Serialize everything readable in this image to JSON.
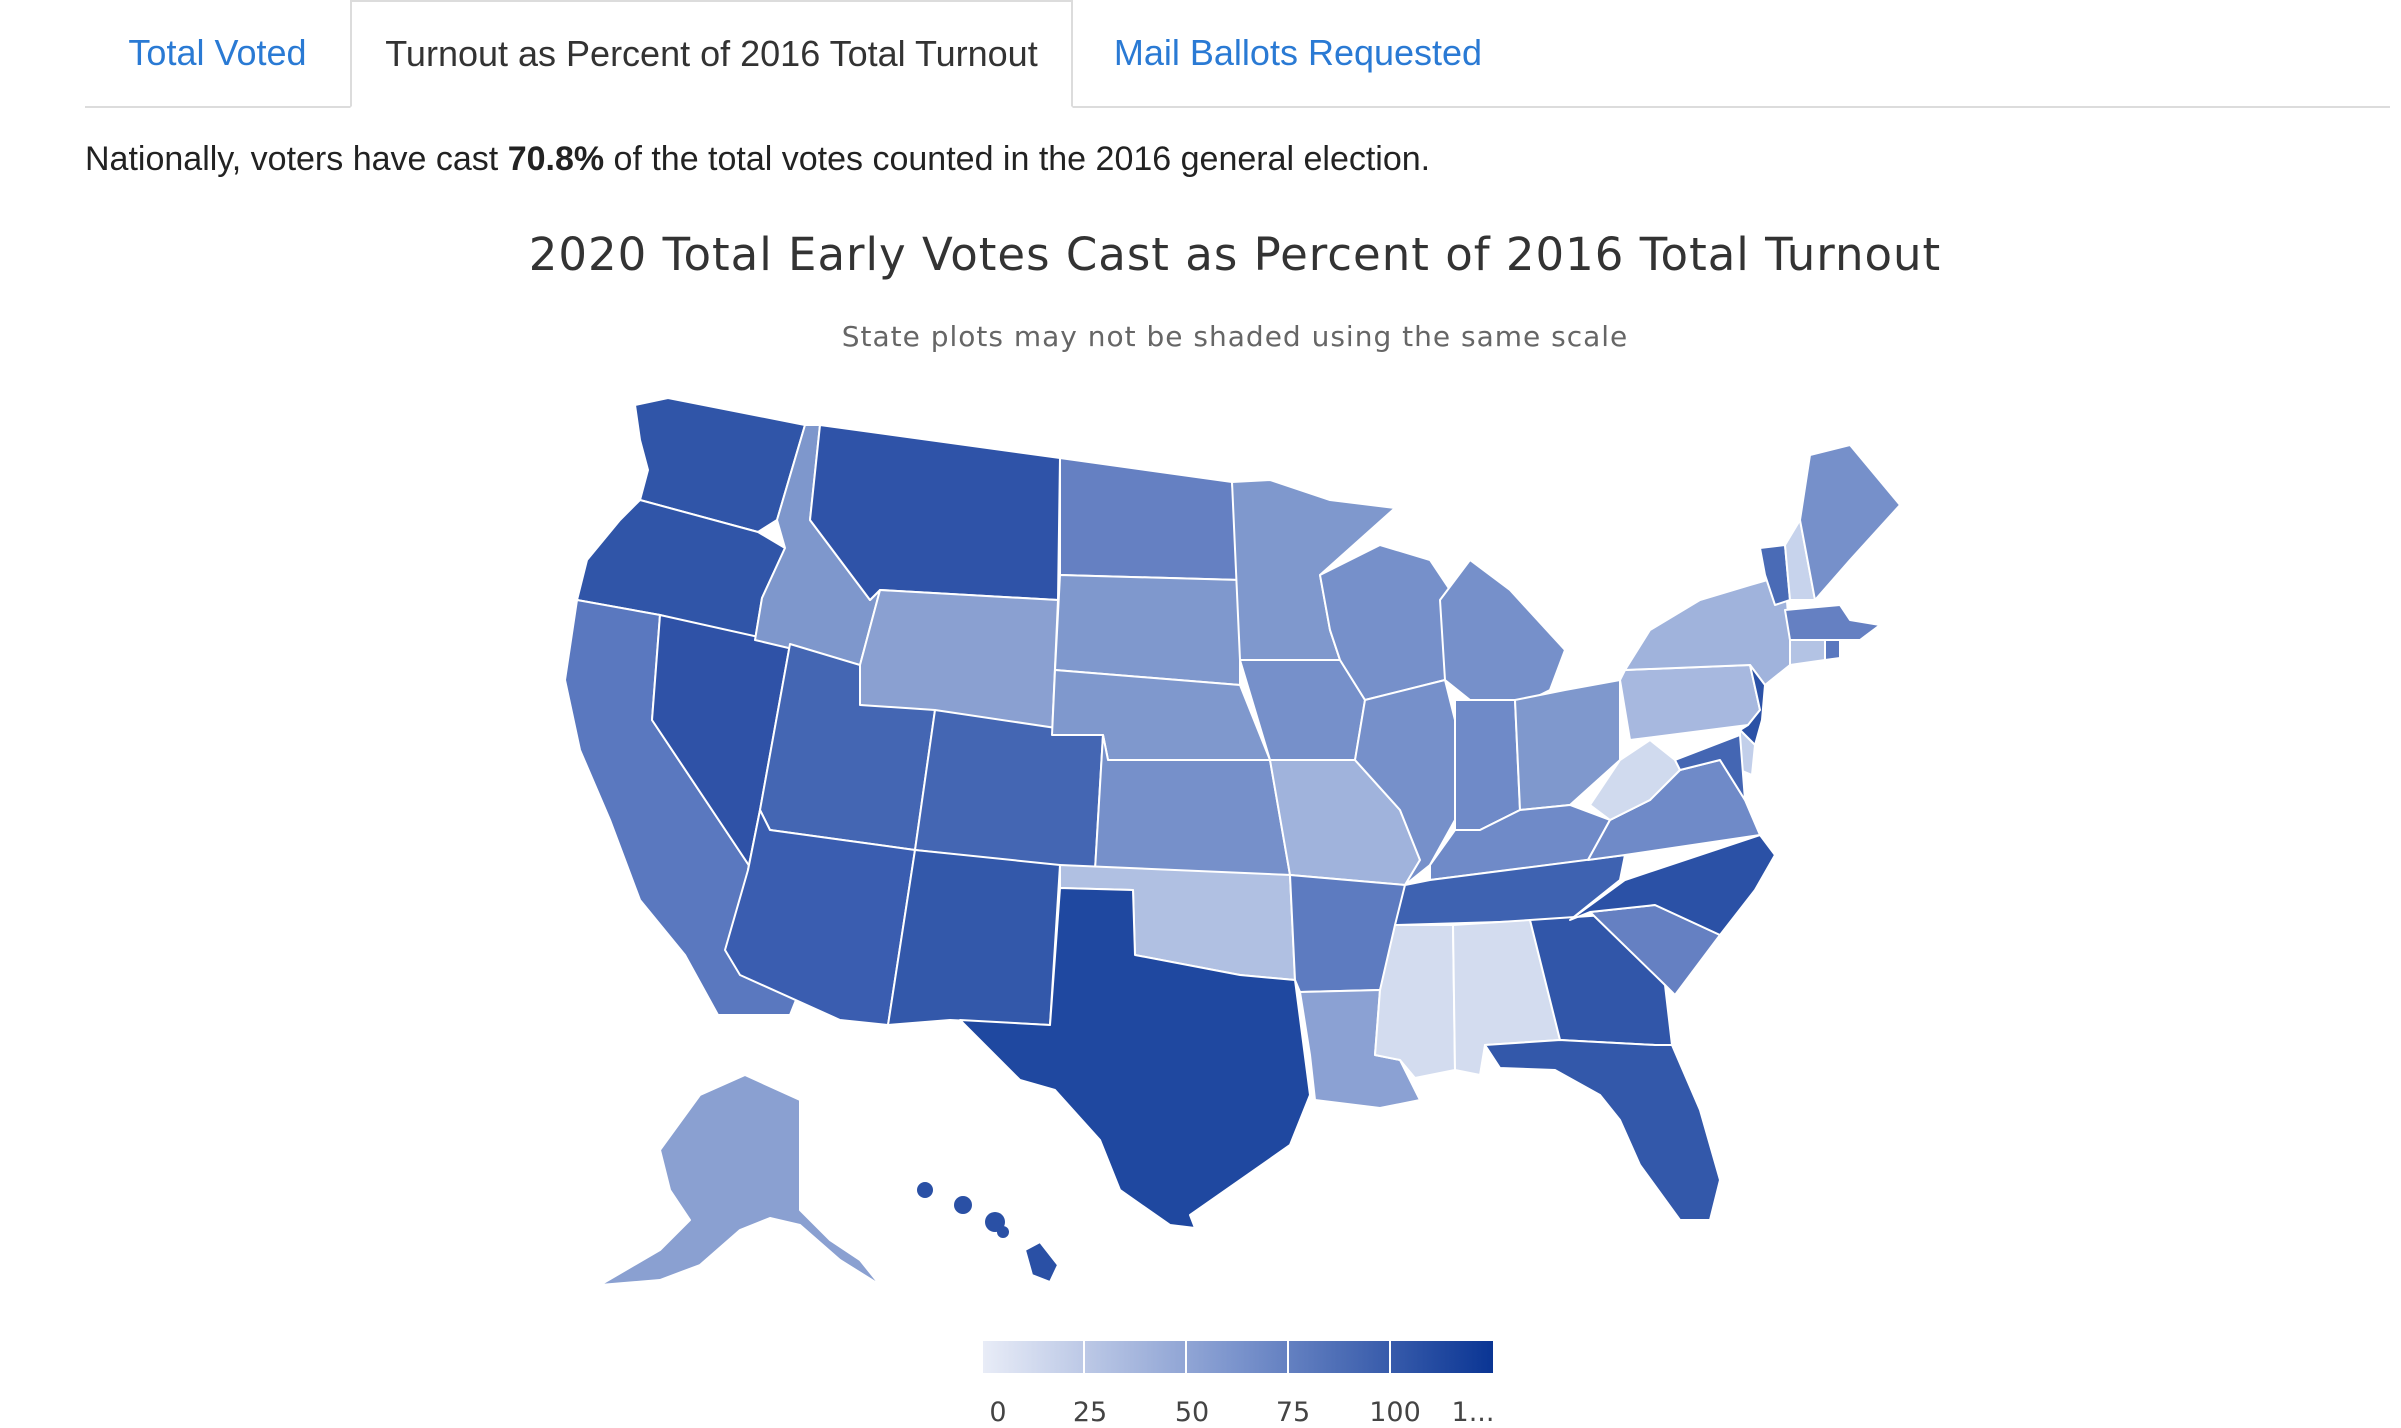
{
  "tabs": [
    {
      "label": "Total Voted",
      "active": false
    },
    {
      "label": "Turnout as Percent of 2016 Total Turnout",
      "active": true
    },
    {
      "label": "Mail Ballots Requested",
      "active": false
    }
  ],
  "summary": {
    "prefix": "Nationally, voters have cast",
    "value": "70.8%",
    "suffix": "of the total votes counted in the 2016 general election."
  },
  "map": {
    "title": "2020 Total Early Votes Cast as Percent of 2016 Total Turnout",
    "subtitle": "State plots may not be shaded using the same scale",
    "colors": {
      "low": "#e8ecf7",
      "mid": "#7a93cc",
      "high": "#0a3594",
      "border": "#ffffff"
    },
    "legend": {
      "ticks": [
        "0",
        "25",
        "50",
        "75",
        "100",
        "1..."
      ]
    },
    "states": {
      "WA": {
        "level": "very-high",
        "color": "#3055a8"
      },
      "OR": {
        "level": "very-high",
        "color": "#3055a8"
      },
      "CA": {
        "level": "high",
        "color": "#5a78bf"
      },
      "NV": {
        "level": "very-high",
        "color": "#2f52a7"
      },
      "ID": {
        "level": "medium",
        "color": "#7e97cc"
      },
      "MT": {
        "level": "very-high",
        "color": "#2f53a8"
      },
      "WY": {
        "level": "medium",
        "color": "#8aa0d1"
      },
      "UT": {
        "level": "high",
        "color": "#4466b3"
      },
      "AZ": {
        "level": "high",
        "color": "#3a5db0"
      },
      "CO": {
        "level": "high",
        "color": "#4466b3"
      },
      "NM": {
        "level": "very-high",
        "color": "#3358aa"
      },
      "ND": {
        "level": "high",
        "color": "#6580c2"
      },
      "SD": {
        "level": "medium",
        "color": "#7f98cd"
      },
      "NE": {
        "level": "medium",
        "color": "#7f98cd"
      },
      "KS": {
        "level": "medium",
        "color": "#7690ca"
      },
      "OK": {
        "level": "low",
        "color": "#b0c0e2"
      },
      "TX": {
        "level": "very-high",
        "color": "#1f48a0"
      },
      "MN": {
        "level": "medium",
        "color": "#7f98cd"
      },
      "IA": {
        "level": "medium",
        "color": "#7690ca"
      },
      "MO": {
        "level": "low",
        "color": "#a0b3dc"
      },
      "AR": {
        "level": "high",
        "color": "#5d7bc0"
      },
      "LA": {
        "level": "medium",
        "color": "#8ba1d3"
      },
      "WI": {
        "level": "medium",
        "color": "#7690ca"
      },
      "IL": {
        "level": "medium",
        "color": "#7690ca"
      },
      "MI": {
        "level": "medium",
        "color": "#7690ca"
      },
      "IN": {
        "level": "medium",
        "color": "#6f8ac8"
      },
      "OH": {
        "level": "medium",
        "color": "#7f98cd"
      },
      "KY": {
        "level": "medium",
        "color": "#6f8ac8"
      },
      "TN": {
        "level": "high",
        "color": "#3e62b1"
      },
      "MS": {
        "level": "very-low",
        "color": "#d3dcef"
      },
      "AL": {
        "level": "very-low",
        "color": "#d3dcef"
      },
      "GA": {
        "level": "very-high",
        "color": "#3156a9"
      },
      "FL": {
        "level": "very-high",
        "color": "#3358aa"
      },
      "SC": {
        "level": "high",
        "color": "#6580c2"
      },
      "NC": {
        "level": "very-high",
        "color": "#2b51a6"
      },
      "VA": {
        "level": "medium",
        "color": "#6f8ac8"
      },
      "WV": {
        "level": "very-low",
        "color": "#d0daee"
      },
      "PA": {
        "level": "low",
        "color": "#a7b8df"
      },
      "NY": {
        "level": "low",
        "color": "#a0b3dc"
      },
      "NJ": {
        "level": "very-high",
        "color": "#2b51a6"
      },
      "MD": {
        "level": "high",
        "color": "#4466b3"
      },
      "DE": {
        "level": "very-low",
        "color": "#c2cfea"
      },
      "VT": {
        "level": "high",
        "color": "#4a6bb6"
      },
      "NH": {
        "level": "very-low",
        "color": "#c7d3ec"
      },
      "ME": {
        "level": "medium",
        "color": "#7690ca"
      },
      "MA": {
        "level": "high",
        "color": "#6580c2"
      },
      "CT": {
        "level": "low",
        "color": "#b3c3e4"
      },
      "RI": {
        "level": "high",
        "color": "#5a78bf"
      },
      "AK": {
        "level": "medium",
        "color": "#8aa0d1"
      },
      "HI": {
        "level": "very-high",
        "color": "#2a50a5"
      }
    }
  }
}
